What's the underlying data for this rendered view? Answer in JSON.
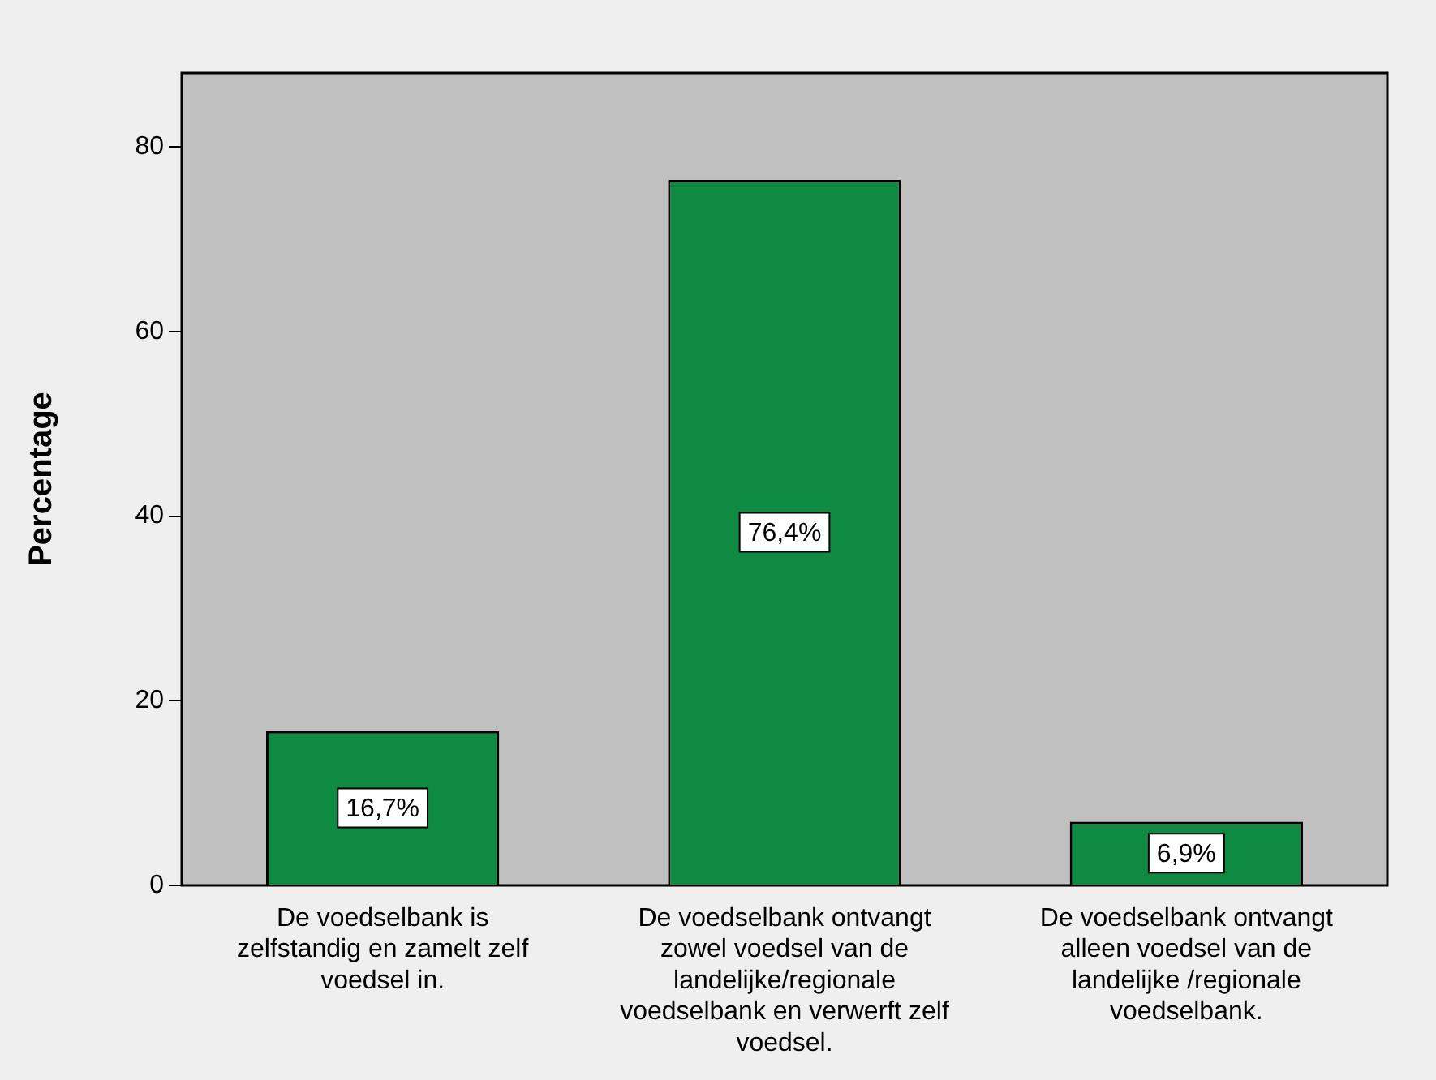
{
  "chart_data": {
    "type": "bar",
    "ylabel": "Percentage",
    "categories": [
      "De voedselbank is zelfstandig en zamelt zelf voedsel in.",
      "De voedselbank ontvangt zowel voedsel van de landelijke/regionale voedselbank en verwerft zelf voedsel.",
      "De voedselbank ontvangt alleen voedsel van de landelijke /regionale voedselbank."
    ],
    "values": [
      16.7,
      76.4,
      6.9
    ],
    "value_labels": [
      "16,7%",
      "76,4%",
      "6,9%"
    ],
    "color": "#0f8a42",
    "ylim": [
      0,
      88
    ],
    "yticks": [
      0,
      20,
      40,
      60,
      80
    ],
    "grid": false,
    "legend": false
  }
}
